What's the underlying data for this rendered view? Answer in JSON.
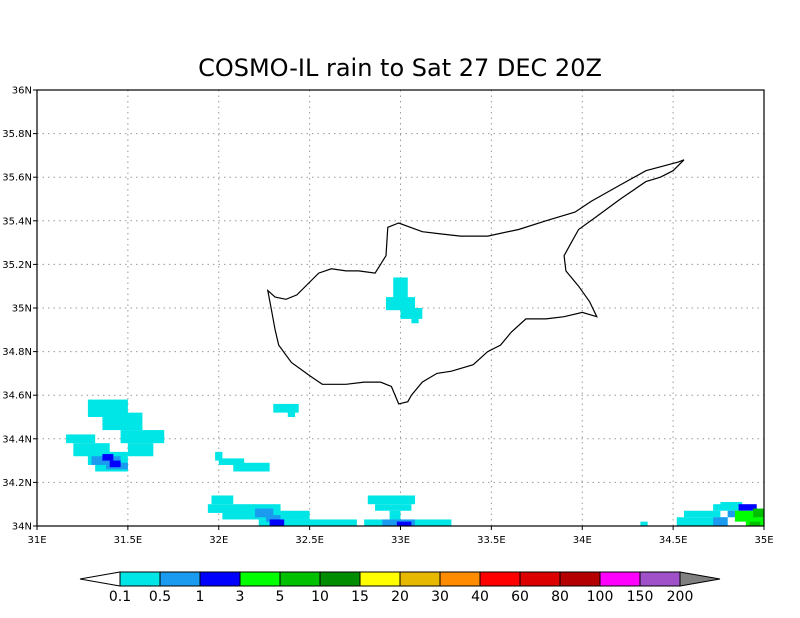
{
  "title": "COSMO-IL rain to Sat 27 DEC 20Z",
  "map": {
    "lon_range": [
      31,
      35
    ],
    "lat_range": [
      34,
      36
    ],
    "x_ticks": [
      {
        "lon": 31,
        "label": "31E"
      },
      {
        "lon": 31.5,
        "label": "31.5E"
      },
      {
        "lon": 32,
        "label": "32E"
      },
      {
        "lon": 32.5,
        "label": "32.5E"
      },
      {
        "lon": 33,
        "label": "33E"
      },
      {
        "lon": 33.5,
        "label": "33.5E"
      },
      {
        "lon": 34,
        "label": "34E"
      },
      {
        "lon": 34.5,
        "label": "34.5E"
      },
      {
        "lon": 35,
        "label": "35E"
      }
    ],
    "y_ticks": [
      {
        "lat": 34,
        "label": "34N"
      },
      {
        "lat": 34.2,
        "label": "34.2N"
      },
      {
        "lat": 34.4,
        "label": "34.4N"
      },
      {
        "lat": 34.6,
        "label": "34.6N"
      },
      {
        "lat": 34.8,
        "label": "34.8N"
      },
      {
        "lat": 35,
        "label": "35N"
      },
      {
        "lat": 35.2,
        "label": "35.2N"
      },
      {
        "lat": 35.4,
        "label": "35.4N"
      },
      {
        "lat": 35.6,
        "label": "35.6N"
      },
      {
        "lat": 35.8,
        "label": "35.8N"
      },
      {
        "lat": 36,
        "label": "36N"
      }
    ],
    "grid": true,
    "coastline_lonlat": [
      [
        32.27,
        35.08
      ],
      [
        32.31,
        35.05
      ],
      [
        32.37,
        35.04
      ],
      [
        32.43,
        35.06
      ],
      [
        32.49,
        35.11
      ],
      [
        32.55,
        35.16
      ],
      [
        32.62,
        35.18
      ],
      [
        32.7,
        35.17
      ],
      [
        32.77,
        35.17
      ],
      [
        32.86,
        35.16
      ],
      [
        32.92,
        35.24
      ],
      [
        32.93,
        35.37
      ],
      [
        32.99,
        35.39
      ],
      [
        33.12,
        35.35
      ],
      [
        33.22,
        35.34
      ],
      [
        33.33,
        35.33
      ],
      [
        33.48,
        35.33
      ],
      [
        33.65,
        35.36
      ],
      [
        33.8,
        35.4
      ],
      [
        33.96,
        35.44
      ],
      [
        34.05,
        35.49
      ],
      [
        34.2,
        35.56
      ],
      [
        34.35,
        35.63
      ],
      [
        34.53,
        35.67
      ],
      [
        34.56,
        35.68
      ],
      [
        34.5,
        35.63
      ],
      [
        34.43,
        35.6
      ],
      [
        34.35,
        35.58
      ],
      [
        34.21,
        35.5
      ],
      [
        34.08,
        35.42
      ],
      [
        33.98,
        35.36
      ],
      [
        33.94,
        35.3
      ],
      [
        33.9,
        35.24
      ],
      [
        33.91,
        35.17
      ],
      [
        33.98,
        35.1
      ],
      [
        34.04,
        35.03
      ],
      [
        34.08,
        34.96
      ],
      [
        34.0,
        34.98
      ],
      [
        33.9,
        34.96
      ],
      [
        33.8,
        34.95
      ],
      [
        33.69,
        34.95
      ],
      [
        33.61,
        34.89
      ],
      [
        33.55,
        34.83
      ],
      [
        33.48,
        34.8
      ],
      [
        33.4,
        34.74
      ],
      [
        33.28,
        34.71
      ],
      [
        33.2,
        34.7
      ],
      [
        33.12,
        34.66
      ],
      [
        33.06,
        34.6
      ],
      [
        33.04,
        34.57
      ],
      [
        32.99,
        34.56
      ],
      [
        32.95,
        34.64
      ],
      [
        32.89,
        34.66
      ],
      [
        32.8,
        34.66
      ],
      [
        32.7,
        34.65
      ],
      [
        32.57,
        34.65
      ],
      [
        32.5,
        34.69
      ],
      [
        32.4,
        34.75
      ],
      [
        32.33,
        34.83
      ],
      [
        32.31,
        34.9
      ],
      [
        32.29,
        34.99
      ],
      [
        32.27,
        35.08
      ]
    ],
    "rain_patches": [
      {
        "color": "#00e5e5",
        "cells": [
          [
            32.96,
            35.04,
            33.04,
            35.14
          ],
          [
            32.92,
            34.99,
            33.08,
            35.05
          ],
          [
            33.0,
            34.95,
            33.12,
            35.0
          ],
          [
            33.06,
            34.93,
            33.1,
            34.96
          ],
          [
            31.28,
            34.5,
            31.5,
            34.58
          ],
          [
            31.36,
            34.44,
            31.58,
            34.52
          ],
          [
            31.46,
            34.38,
            31.7,
            34.44
          ],
          [
            31.5,
            34.32,
            31.64,
            34.38
          ],
          [
            31.16,
            34.38,
            31.32,
            34.42
          ],
          [
            31.2,
            34.32,
            31.4,
            34.38
          ],
          [
            31.28,
            34.28,
            31.5,
            34.34
          ],
          [
            31.32,
            34.25,
            31.5,
            34.29
          ],
          [
            32.3,
            34.52,
            32.44,
            34.56
          ],
          [
            32.38,
            34.5,
            32.42,
            34.53
          ],
          [
            31.98,
            34.3,
            32.02,
            34.34
          ],
          [
            32.0,
            34.28,
            32.14,
            34.31
          ],
          [
            32.08,
            34.25,
            32.28,
            34.29
          ],
          [
            31.96,
            34.1,
            32.08,
            34.14
          ],
          [
            31.94,
            34.06,
            32.34,
            34.1
          ],
          [
            32.02,
            34.03,
            32.5,
            34.07
          ],
          [
            32.22,
            34.0,
            32.76,
            34.03
          ],
          [
            32.82,
            34.1,
            33.08,
            34.14
          ],
          [
            32.86,
            34.07,
            33.06,
            34.1
          ],
          [
            32.94,
            34.03,
            33.0,
            34.07
          ],
          [
            32.8,
            34.0,
            33.28,
            34.03
          ],
          [
            34.32,
            34.0,
            34.36,
            34.02
          ],
          [
            34.52,
            34.0,
            34.8,
            34.04
          ],
          [
            34.56,
            34.04,
            34.76,
            34.07
          ],
          [
            34.72,
            34.07,
            34.86,
            34.1
          ],
          [
            34.76,
            34.09,
            34.88,
            34.11
          ]
        ]
      },
      {
        "color": "#1a9bf0",
        "cells": [
          [
            31.3,
            34.28,
            31.46,
            34.32
          ],
          [
            31.38,
            34.26,
            31.5,
            34.29
          ],
          [
            32.2,
            34.04,
            32.3,
            34.08
          ],
          [
            32.26,
            34.02,
            32.34,
            34.05
          ],
          [
            32.9,
            34.0,
            33.08,
            34.03
          ],
          [
            34.72,
            34.0,
            34.8,
            34.04
          ],
          [
            34.8,
            34.04,
            34.86,
            34.07
          ],
          [
            34.96,
            34.0,
            35.0,
            34.04
          ]
        ]
      },
      {
        "color": "#0000ff",
        "cells": [
          [
            31.36,
            34.3,
            31.42,
            34.33
          ],
          [
            31.4,
            34.27,
            31.46,
            34.3
          ],
          [
            32.28,
            34.0,
            32.36,
            34.03
          ],
          [
            32.98,
            34.0,
            33.06,
            34.02
          ],
          [
            34.86,
            34.07,
            34.96,
            34.1
          ]
        ]
      },
      {
        "color": "#00ff00",
        "cells": [
          [
            34.84,
            34.02,
            34.96,
            34.07
          ],
          [
            34.9,
            34.0,
            35.0,
            34.04
          ]
        ]
      },
      {
        "color": "#00c000",
        "cells": [
          [
            34.94,
            34.04,
            35.0,
            34.08
          ],
          [
            34.92,
            34.0,
            34.98,
            34.02
          ]
        ]
      }
    ]
  },
  "colorbar": {
    "colors": [
      "#ffffff",
      "#00e5e5",
      "#1a9bf0",
      "#0000ff",
      "#00ff00",
      "#00c000",
      "#008c00",
      "#ffff00",
      "#e6b800",
      "#ff8c00",
      "#ff0000",
      "#dc0000",
      "#b40000",
      "#ff00ff",
      "#a050c8",
      "#808080"
    ],
    "labels": [
      "0.1",
      "0.5",
      "1",
      "3",
      "5",
      "10",
      "15",
      "20",
      "30",
      "40",
      "60",
      "80",
      "100",
      "150",
      "200"
    ]
  }
}
